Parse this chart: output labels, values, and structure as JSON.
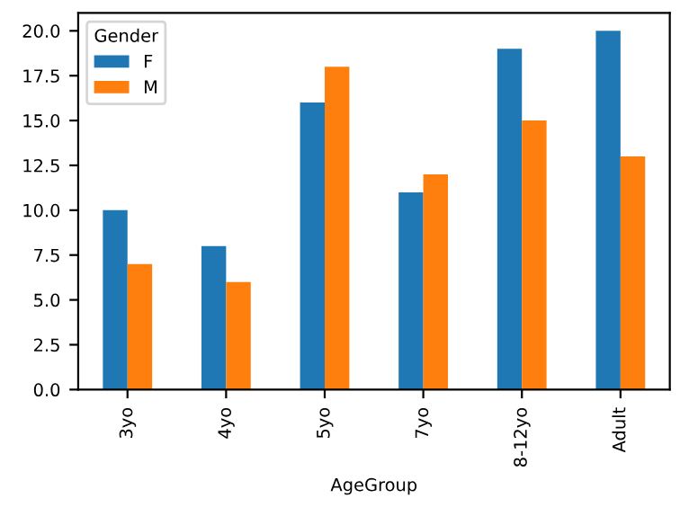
{
  "chart_data": {
    "type": "bar",
    "xlabel": "AgeGroup",
    "legend_title": "Gender",
    "legend": "top left",
    "grid": false,
    "categories": [
      "3yo",
      "4yo",
      "5yo",
      "7yo",
      "8-12yo",
      "Adult"
    ],
    "series": [
      {
        "name": "F",
        "color": "#1f77b4",
        "values": [
          10,
          8,
          16,
          11,
          19,
          20
        ]
      },
      {
        "name": "M",
        "color": "#ff7f0e",
        "values": [
          7,
          6,
          18,
          12,
          15,
          13
        ]
      }
    ],
    "ylim": [
      0,
      21
    ],
    "yticks": [
      {
        "value": 0,
        "label": "0.0"
      },
      {
        "value": 2.5,
        "label": "2.5"
      },
      {
        "value": 5,
        "label": "5.0"
      },
      {
        "value": 7.5,
        "label": "7.5"
      },
      {
        "value": 10,
        "label": "10.0"
      },
      {
        "value": 12.5,
        "label": "12.5"
      },
      {
        "value": 15,
        "label": "15.0"
      },
      {
        "value": 17.5,
        "label": "17.5"
      },
      {
        "value": 20,
        "label": "20.0"
      }
    ]
  }
}
